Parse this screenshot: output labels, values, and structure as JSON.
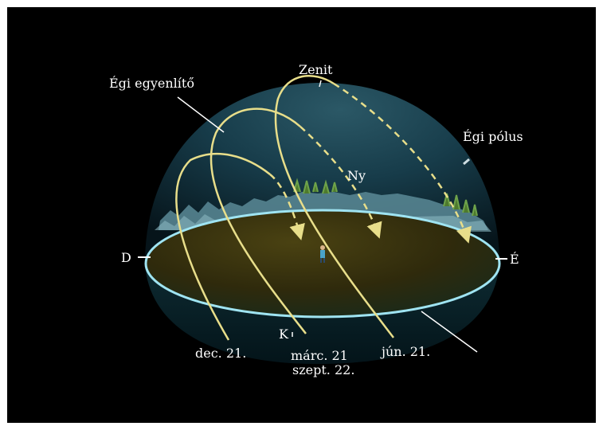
{
  "diagram": {
    "labels": {
      "zenith": "Zenit",
      "celestial_equator": "Égi egyenlítő",
      "celestial_pole": "Égi pólus",
      "west": "Ny",
      "south": "D",
      "north": "É",
      "east": "K",
      "dec21": "dec. 21.",
      "mar21": "márc. 21",
      "sep22": "szept. 22.",
      "jun21": "jún. 21."
    },
    "colors": {
      "background": "#000000",
      "sun_path": "#e8de8a",
      "horizon_rim": "#9fe4f2",
      "sky_dome": "#173c4a",
      "ground": "#3a3410"
    }
  }
}
